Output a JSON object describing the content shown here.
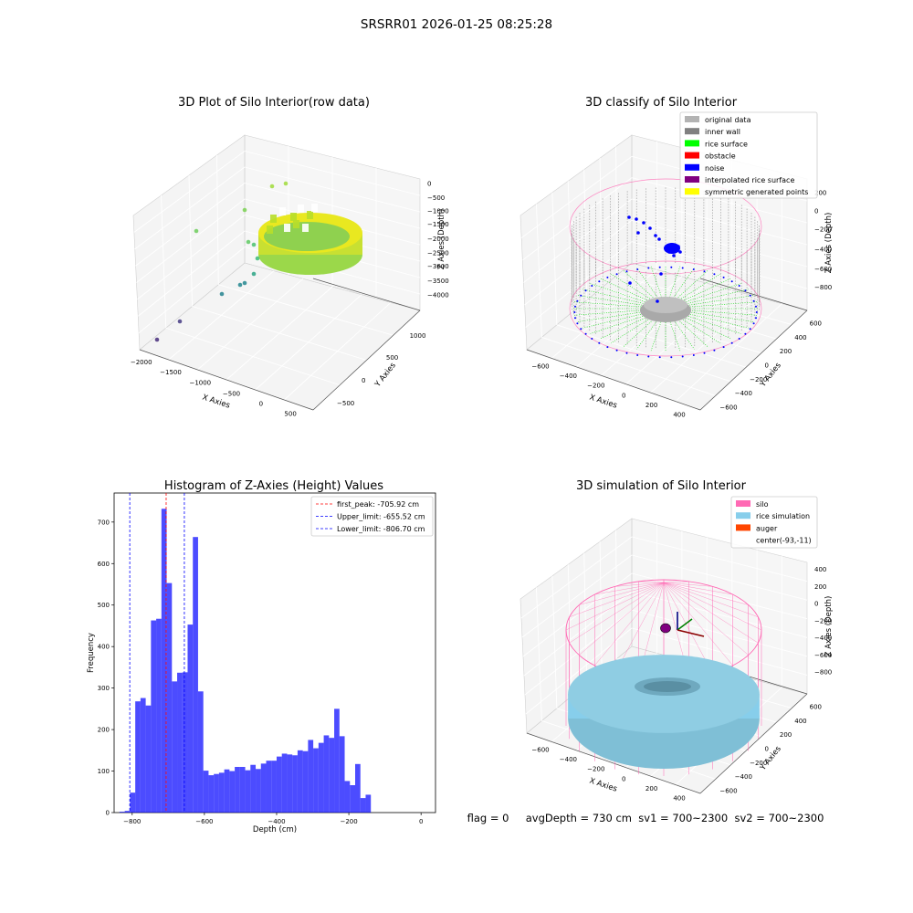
{
  "figure": {
    "suptitle": "SRSRR01 2026-01-25 08:25:28",
    "status_line": "flag = 0     avgDepth = 730 cm  sv1 = 700~2300  sv2 = 700~2300"
  },
  "chart_data": [
    {
      "type": "scatter",
      "panel": "3d-raw",
      "title": "3D Plot of Silo Interior(row data)",
      "xlabel": "X Axies",
      "ylabel": "Y Axies",
      "zlabel": "Z Axies (Depth)",
      "xticks": [
        "−2000",
        "−1500",
        "−1000",
        "−500",
        "0",
        "500"
      ],
      "yticks": [
        "−500",
        "0",
        "500",
        "1000"
      ],
      "zticks": [
        "0",
        "−500",
        "−1000",
        "−1500",
        "−2000",
        "−2500",
        "−3000",
        "−3500",
        "−4000"
      ],
      "colormap": "viridis",
      "colors": {
        "high": "#fde725",
        "mid": "#7ad151",
        "low": "#440154"
      }
    },
    {
      "type": "scatter",
      "panel": "3d-classify",
      "title": "3D classify of Silo Interior",
      "xlabel": "X Axies",
      "ylabel": "Y Axies",
      "zlabel": "Z Axies (Depth)",
      "xticks": [
        "−600",
        "−400",
        "−200",
        "0",
        "200",
        "400"
      ],
      "yticks": [
        "−600",
        "−400",
        "−200",
        "0",
        "200",
        "400",
        "600"
      ],
      "zticks": [
        "200",
        "0",
        "−200",
        "−400",
        "−600",
        "−800"
      ],
      "legend": [
        {
          "label": "original data",
          "color": "#b3b3b3"
        },
        {
          "label": "inner wall",
          "color": "#808080"
        },
        {
          "label": "rice surface",
          "color": "#00ff00"
        },
        {
          "label": "obstacle",
          "color": "#ff0000"
        },
        {
          "label": "noise",
          "color": "#0000ff"
        },
        {
          "label": "interpolated rice surface",
          "color": "#800080"
        },
        {
          "label": "symmetric generated points",
          "color": "#ffff00"
        }
      ],
      "legend_position": "top-right"
    },
    {
      "type": "bar",
      "panel": "histogram",
      "title": "Histogram of Z-Axies (Height) Values",
      "xlabel": "Depth (cm)",
      "ylabel": "Frequency",
      "xlim": [
        -850,
        40
      ],
      "ylim": [
        0,
        770
      ],
      "xticks": [
        -800,
        -600,
        -400,
        -200,
        0
      ],
      "xtick_labels": [
        "−800",
        "−600",
        "−400",
        "−200",
        "0"
      ],
      "yticks": [
        0,
        100,
        200,
        300,
        400,
        500,
        600,
        700
      ],
      "bin_start": -835,
      "bin_width": 14.5,
      "values": [
        2,
        4,
        48,
        268,
        276,
        258,
        463,
        467,
        732,
        553,
        316,
        337,
        338,
        453,
        664,
        292,
        101,
        90,
        93,
        96,
        104,
        100,
        110,
        110,
        102,
        115,
        105,
        118,
        125,
        125,
        135,
        142,
        140,
        138,
        150,
        148,
        175,
        155,
        168,
        186,
        180,
        250,
        184,
        76,
        66,
        117,
        35,
        43
      ],
      "bar_color": "#0000ff",
      "lines": [
        {
          "label": "first_peak: -705.92 cm",
          "x": -705.92,
          "color": "#ff0000"
        },
        {
          "label": "Upper_limit: -655.52 cm",
          "x": -655.52,
          "color": "#0000ff"
        },
        {
          "label": "Lower_limit: -806.70 cm",
          "x": -806.7,
          "color": "#0000ff"
        }
      ],
      "legend_position": "top-right"
    },
    {
      "type": "scatter",
      "panel": "3d-simulation",
      "title": "3D simulation of Silo Interior",
      "xlabel": "X Axies",
      "ylabel": "Y Axies",
      "zlabel": "Z Axies (Depth)",
      "xticks": [
        "−600",
        "−400",
        "−200",
        "0",
        "200",
        "400"
      ],
      "yticks": [
        "−600",
        "−400",
        "−200",
        "0",
        "200",
        "400",
        "600"
      ],
      "zticks": [
        "400",
        "200",
        "0",
        "−200",
        "−400",
        "−600",
        "−800"
      ],
      "legend": [
        {
          "label": "silo",
          "color": "#ff69b4"
        },
        {
          "label": "rice simulation",
          "color": "#87ceeb"
        },
        {
          "label": "auger",
          "color": "#ff4500"
        },
        {
          "label": "center(-93,-11)",
          "color": ""
        }
      ],
      "legend_position": "top-right"
    }
  ]
}
